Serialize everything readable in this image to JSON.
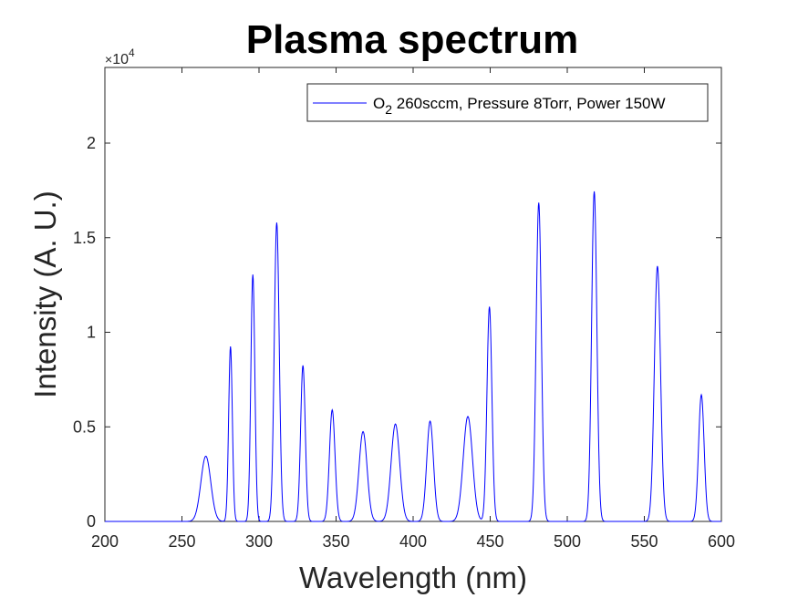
{
  "chart_data": {
    "type": "line",
    "title": "Plasma spectrum",
    "xlabel": "Wavelength (nm)",
    "ylabel": "Intensity (A. U.)",
    "xlim": [
      200,
      600
    ],
    "ylim": [
      0,
      24000
    ],
    "x_ticks": [
      200,
      250,
      300,
      350,
      400,
      450,
      500,
      550,
      600
    ],
    "x_tick_labels": [
      "200",
      "250",
      "300",
      "350",
      "400",
      "450",
      "500",
      "550",
      "600"
    ],
    "y_ticks": [
      0,
      5000,
      10000,
      15000,
      20000
    ],
    "y_tick_labels": [
      "0",
      "0.5",
      "1",
      "1.5",
      "2"
    ],
    "y_exponent": {
      "base": "10",
      "power": "4"
    },
    "grid": false,
    "legend_position": "top-right",
    "series": [
      {
        "legend_main": "O",
        "legend_sub": "2",
        "legend_rest": " 260sccm, Pressure 8Torr, Power 150W",
        "color": "#0000ff",
        "peaks": [
          {
            "x": 265.5,
            "y": 3450,
            "width": 3.2
          },
          {
            "x": 281.5,
            "y": 9250,
            "width": 1.2
          },
          {
            "x": 296.0,
            "y": 13050,
            "width": 1.3
          },
          {
            "x": 311.5,
            "y": 15800,
            "width": 1.6
          },
          {
            "x": 328.5,
            "y": 8250,
            "width": 1.5
          },
          {
            "x": 347.5,
            "y": 5900,
            "width": 1.8
          },
          {
            "x": 367.5,
            "y": 4750,
            "width": 2.6
          },
          {
            "x": 388.5,
            "y": 5150,
            "width": 2.8
          },
          {
            "x": 411.0,
            "y": 5300,
            "width": 2.2
          },
          {
            "x": 435.5,
            "y": 5550,
            "width": 3.0
          },
          {
            "x": 449.5,
            "y": 11350,
            "width": 1.6
          },
          {
            "x": 481.5,
            "y": 16850,
            "width": 1.7
          },
          {
            "x": 517.5,
            "y": 17450,
            "width": 1.7
          },
          {
            "x": 558.5,
            "y": 13500,
            "width": 2.0
          },
          {
            "x": 587.0,
            "y": 6700,
            "width": 1.8
          }
        ]
      }
    ]
  }
}
